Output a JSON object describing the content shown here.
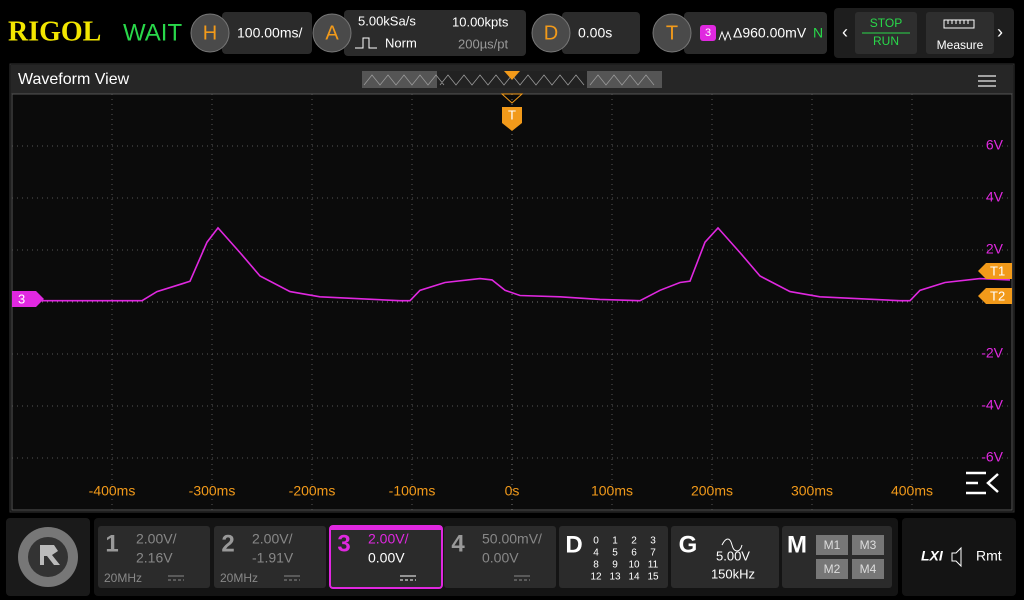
{
  "header": {
    "brand": "RIGOL",
    "status": "WAIT",
    "horizontal": {
      "label": "H",
      "value": "100.00ms/"
    },
    "acquire": {
      "label": "A",
      "rate": "5.00kSa/s",
      "depth": "10.00kpts",
      "mode": "Norm",
      "interval": "200µs/pt"
    },
    "delay": {
      "label": "D",
      "value": "0.00s"
    },
    "trigger": {
      "label": "T",
      "source": "3",
      "level": "Δ960.00mV",
      "coupling": "N"
    },
    "stop": "STOP",
    "run": "RUN",
    "measure": "Measure"
  },
  "view": {
    "title": "Waveform View",
    "trigger_marker": "T",
    "channel_marker": "3",
    "t1": "T1",
    "t2": "T2"
  },
  "chart_data": {
    "type": "line",
    "color": "#e028e0",
    "x": [
      -500,
      -370,
      -355,
      -330,
      -322,
      -305,
      -294,
      -272,
      -252,
      -222,
      -192,
      -112,
      -102,
      -92,
      -67,
      -32,
      -20,
      -7,
      8,
      48,
      88,
      128,
      148,
      168,
      178,
      193,
      206,
      228,
      248,
      278,
      308,
      388,
      398,
      408,
      433,
      468,
      498
    ],
    "values": [
      0.05,
      0.05,
      0.4,
      0.7,
      0.8,
      2.3,
      2.85,
      1.9,
      1.0,
      0.4,
      0.2,
      0.05,
      0.05,
      0.45,
      0.75,
      0.9,
      0.85,
      0.45,
      0.25,
      0.2,
      0.1,
      0.05,
      0.45,
      0.75,
      0.8,
      2.3,
      2.85,
      1.9,
      1.0,
      0.4,
      0.2,
      0.05,
      0.05,
      0.45,
      0.75,
      0.9,
      0.85
    ],
    "xlim": [
      -500,
      500
    ],
    "ylim": [
      -8,
      8
    ],
    "xticks": [
      {
        "value": -400,
        "label": "-400ms"
      },
      {
        "value": -300,
        "label": "-300ms"
      },
      {
        "value": -200,
        "label": "-200ms"
      },
      {
        "value": -100,
        "label": "-100ms"
      },
      {
        "value": 0,
        "label": "0s"
      },
      {
        "value": 100,
        "label": "100ms"
      },
      {
        "value": 200,
        "label": "200ms"
      },
      {
        "value": 300,
        "label": "300ms"
      },
      {
        "value": 400,
        "label": "400ms"
      }
    ],
    "yticks": [
      {
        "value": 6,
        "label": "6V"
      },
      {
        "value": 4,
        "label": "4V"
      },
      {
        "value": 2,
        "label": "2V"
      },
      {
        "value": -2,
        "label": "-2V"
      },
      {
        "value": -4,
        "label": "-4V"
      },
      {
        "value": -6,
        "label": "-6V"
      }
    ],
    "grid": true
  },
  "channels": [
    {
      "name": "1",
      "scale": "2.00V/",
      "offset": "2.16V",
      "bandwidth": "20MHz"
    },
    {
      "name": "2",
      "scale": "2.00V/",
      "offset": "-1.91V",
      "bandwidth": "20MHz"
    },
    {
      "name": "3",
      "scale": "2.00V/",
      "offset": "0.00V"
    },
    {
      "name": "4",
      "scale": "50.00mV/",
      "offset": "0.00V"
    }
  ],
  "digital": {
    "name": "D",
    "bits": [
      "0",
      "1",
      "2",
      "3",
      "4",
      "5",
      "6",
      "7",
      "8",
      "9",
      "10",
      "11",
      "12",
      "13",
      "14",
      "15"
    ]
  },
  "generator": {
    "name": "G",
    "amplitude": "5.00V",
    "frequency": "150kHz"
  },
  "math": {
    "name": "M",
    "items": [
      "M1",
      "M2",
      "M3",
      "M4"
    ]
  },
  "status_bar": {
    "lxi": "LXI",
    "remote": "Rmt"
  }
}
